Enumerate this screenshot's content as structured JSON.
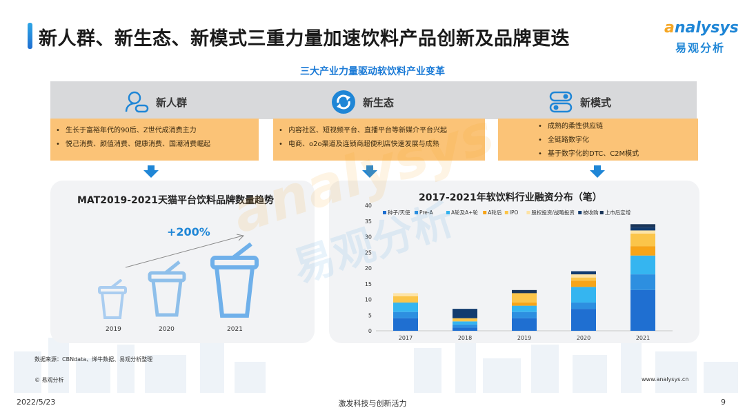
{
  "header": {
    "title": "新人群、新生态、新模式三重力量加速饮料产品创新及品牌更迭",
    "logo_word": "nalysys",
    "logo_initial": "a",
    "logo_cn": "易观分析"
  },
  "subtitle": "三大产业力量驱动软饮料产业变革",
  "columns": [
    {
      "label": "新人群",
      "icon": "person-icon",
      "bullets": [
        "生长于富裕年代的90后、Z世代成消费主力",
        "悦己消费、颜值消费、健康消费、国潮消费崛起"
      ]
    },
    {
      "label": "新生态",
      "icon": "refresh-icon",
      "bullets": [
        "内容社区、短视频平台、直播平台等新媒介平台兴起",
        "电商、o2o渠道及连锁商超便利店快速发展与成熟"
      ]
    },
    {
      "label": "新模式",
      "icon": "toggle-icon",
      "bullets": [
        "成熟的柔性供应链",
        "全链路数字化",
        "基于数字化的DTC、C2M模式"
      ]
    }
  ],
  "left_panel": {
    "title": "MAT2019-2021天猫平台饮料品牌数量趋势",
    "growth": "+200%",
    "years": [
      "2019",
      "2020",
      "2021"
    ]
  },
  "chart_data": {
    "type": "bar",
    "stacked": true,
    "title": "2017-2021年软饮料行业融资分布（笔）",
    "categories": [
      "2017",
      "2018",
      "2019",
      "2020",
      "2021"
    ],
    "ylim": [
      0,
      40
    ],
    "yticks": [
      0,
      5,
      10,
      15,
      20,
      25,
      30,
      35,
      40
    ],
    "legend_position": "top",
    "series": [
      {
        "name": "种子/天使",
        "color": "#1f6fd1",
        "values": [
          4,
          1,
          4,
          7,
          13
        ]
      },
      {
        "name": "Pre-A",
        "color": "#2d8fe0",
        "values": [
          2,
          1,
          2,
          2,
          5
        ]
      },
      {
        "name": "A轮及A+轮",
        "color": "#35b5f0",
        "values": [
          3,
          1,
          2,
          5,
          6
        ]
      },
      {
        "name": "A轮后",
        "color": "#f7a418",
        "values": [
          0,
          0,
          1,
          2,
          3
        ]
      },
      {
        "name": "IPO",
        "color": "#fbc54a",
        "values": [
          2,
          1,
          3,
          1,
          4
        ]
      },
      {
        "name": "股权投资/战略投资",
        "color": "#fde3a6",
        "values": [
          1,
          0,
          0,
          1,
          1
        ]
      },
      {
        "name": "被收购",
        "color": "#123b6e",
        "values": [
          0,
          3,
          0,
          1,
          1
        ]
      },
      {
        "name": "上市后定增",
        "color": "#1a3558",
        "values": [
          0,
          0,
          1,
          0,
          1
        ]
      }
    ]
  },
  "footer": {
    "source": "数据来源：CBNdata、烯牛数据、易观分析整理",
    "copyright": "© 易观分析",
    "site": "www.analysys.cn",
    "date": "2022/5/23",
    "slogan": "激发科技与创新活力",
    "page": "9"
  },
  "watermark": {
    "en": "analysys",
    "cn": "易观分析"
  }
}
